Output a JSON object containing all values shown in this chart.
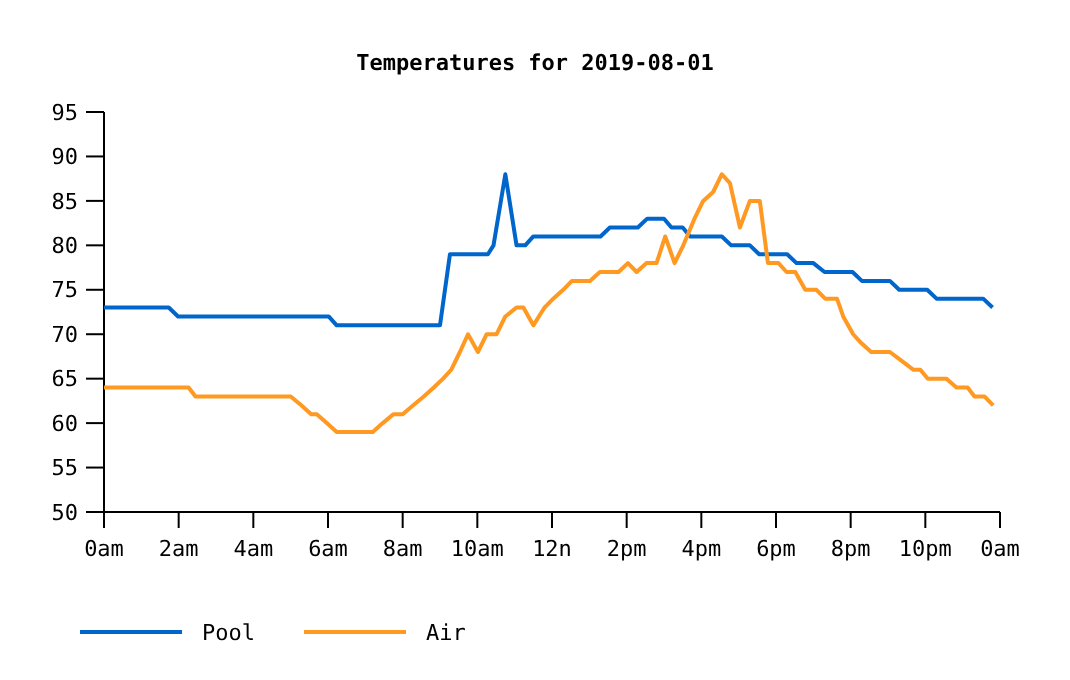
{
  "chart_data": {
    "type": "line",
    "title": "Temperatures for 2019-08-01",
    "xlim": [
      "2019-08-01T00:00",
      "2019-08-02T00:00"
    ],
    "ylim": [
      50,
      95
    ],
    "xticks": [
      {
        "value": "2019-08-01T00:00",
        "label": "0am"
      },
      {
        "value": "2019-08-01T02:00",
        "label": "2am"
      },
      {
        "value": "2019-08-01T04:00",
        "label": "4am"
      },
      {
        "value": "2019-08-01T06:00",
        "label": "6am"
      },
      {
        "value": "2019-08-01T08:00",
        "label": "8am"
      },
      {
        "value": "2019-08-01T10:00",
        "label": "10am"
      },
      {
        "value": "2019-08-01T12:00",
        "label": "12n"
      },
      {
        "value": "2019-08-01T14:00",
        "label": "2pm"
      },
      {
        "value": "2019-08-01T16:00",
        "label": "4pm"
      },
      {
        "value": "2019-08-01T18:00",
        "label": "6pm"
      },
      {
        "value": "2019-08-01T20:00",
        "label": "8pm"
      },
      {
        "value": "2019-08-01T22:00",
        "label": "10pm"
      },
      {
        "value": "2019-08-02T00:00",
        "label": "0am"
      }
    ],
    "yticks": [
      50,
      55,
      60,
      65,
      70,
      75,
      80,
      85,
      90,
      95
    ],
    "grid": false,
    "legend": "bottom left",
    "marker": "none",
    "line_style": "solid",
    "series": [
      {
        "name": "Pool",
        "color": "#0066cc",
        "x": [
          "2019-08-01T00:00",
          "2019-08-01T01:44",
          "2019-08-01T01:59",
          "2019-08-01T06:01",
          "2019-08-01T06:14",
          "2019-08-01T09:00",
          "2019-08-01T09:16",
          "2019-08-01T10:17",
          "2019-08-01T10:26",
          "2019-08-01T10:45",
          "2019-08-01T11:03",
          "2019-08-01T11:17",
          "2019-08-01T11:30",
          "2019-08-01T13:18",
          "2019-08-01T13:33",
          "2019-08-01T14:18",
          "2019-08-01T14:33",
          "2019-08-01T15:00",
          "2019-08-01T15:12",
          "2019-08-01T15:30",
          "2019-08-01T15:42",
          "2019-08-01T16:33",
          "2019-08-01T16:48",
          "2019-08-01T17:18",
          "2019-08-01T17:33",
          "2019-08-01T18:18",
          "2019-08-01T18:33",
          "2019-08-01T19:00",
          "2019-08-01T19:18",
          "2019-08-01T20:03",
          "2019-08-01T20:18",
          "2019-08-01T21:03",
          "2019-08-01T21:18",
          "2019-08-01T22:03",
          "2019-08-01T22:18",
          "2019-08-01T23:33",
          "2019-08-01T23:48"
        ],
        "values": [
          73,
          73,
          72,
          72,
          71,
          71,
          79,
          79,
          80,
          88,
          80,
          80,
          81,
          81,
          82,
          82,
          83,
          83,
          82,
          82,
          81,
          81,
          80,
          80,
          79,
          79,
          78,
          78,
          77,
          77,
          76,
          76,
          75,
          75,
          74,
          74,
          73
        ]
      },
      {
        "name": "Air",
        "color": "#ff9922",
        "x": [
          "2019-08-01T00:00",
          "2019-08-01T02:16",
          "2019-08-01T02:27",
          "2019-08-01T05:00",
          "2019-08-01T05:17",
          "2019-08-01T05:33",
          "2019-08-01T05:42",
          "2019-08-01T05:58",
          "2019-08-01T06:14",
          "2019-08-01T07:12",
          "2019-08-01T07:28",
          "2019-08-01T07:45",
          "2019-08-01T08:00",
          "2019-08-01T08:17",
          "2019-08-01T08:34",
          "2019-08-01T08:50",
          "2019-08-01T09:05",
          "2019-08-01T09:18",
          "2019-08-01T09:32",
          "2019-08-01T09:45",
          "2019-08-01T10:01",
          "2019-08-01T10:15",
          "2019-08-01T10:31",
          "2019-08-01T10:45",
          "2019-08-01T11:03",
          "2019-08-01T11:14",
          "2019-08-01T11:30",
          "2019-08-01T11:48",
          "2019-08-01T12:02",
          "2019-08-01T12:18",
          "2019-08-01T12:32",
          "2019-08-01T13:01",
          "2019-08-01T13:17",
          "2019-08-01T13:47",
          "2019-08-01T14:02",
          "2019-08-01T14:16",
          "2019-08-01T14:32",
          "2019-08-01T14:48",
          "2019-08-01T15:02",
          "2019-08-01T15:17",
          "2019-08-01T15:31",
          "2019-08-01T15:49",
          "2019-08-01T16:03",
          "2019-08-01T16:19",
          "2019-08-01T16:33",
          "2019-08-01T16:46",
          "2019-08-01T17:02",
          "2019-08-01T17:18",
          "2019-08-01T17:34",
          "2019-08-01T17:47",
          "2019-08-01T18:04",
          "2019-08-01T18:17",
          "2019-08-01T18:31",
          "2019-08-01T18:47",
          "2019-08-01T19:05",
          "2019-08-01T19:19",
          "2019-08-01T19:38",
          "2019-08-01T19:48",
          "2019-08-01T20:04",
          "2019-08-01T20:17",
          "2019-08-01T20:33",
          "2019-08-01T21:03",
          "2019-08-01T21:22",
          "2019-08-01T21:41",
          "2019-08-01T21:52",
          "2019-08-01T22:04",
          "2019-08-01T22:34",
          "2019-08-01T22:50",
          "2019-08-01T23:08",
          "2019-08-01T23:19",
          "2019-08-01T23:35",
          "2019-08-01T23:49"
        ],
        "values": [
          64,
          64,
          63,
          63,
          62,
          61,
          61,
          60,
          59,
          59,
          60,
          61,
          61,
          62,
          63,
          64,
          65,
          66,
          68,
          70,
          68,
          70,
          70,
          72,
          73,
          73,
          71,
          73,
          74,
          75,
          76,
          76,
          77,
          77,
          78,
          77,
          78,
          78,
          81,
          78,
          80,
          83,
          85,
          86,
          88,
          87,
          82,
          85,
          85,
          78,
          78,
          77,
          77,
          75,
          75,
          74,
          74,
          72,
          70,
          69,
          68,
          68,
          67,
          66,
          66,
          65,
          65,
          64,
          64,
          63,
          63,
          62
        ]
      }
    ]
  }
}
